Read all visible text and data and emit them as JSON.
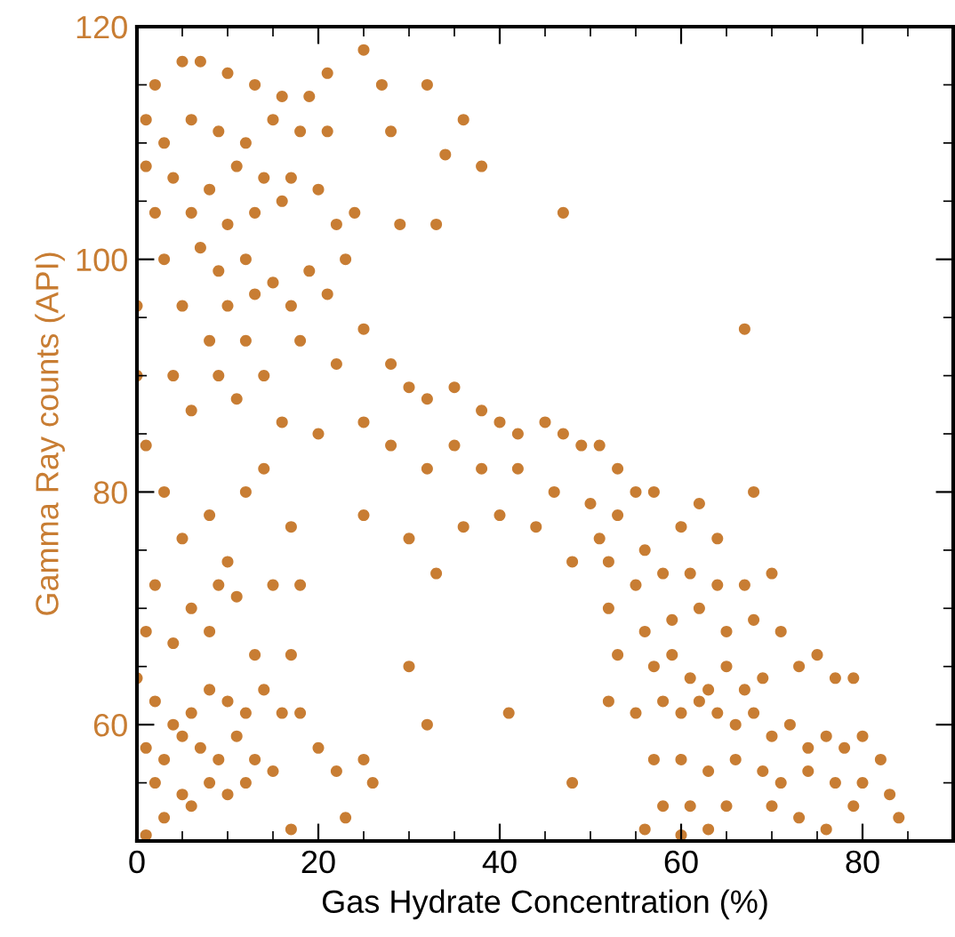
{
  "chart_data": {
    "type": "scatter",
    "xlabel": "Gas Hydrate Concentration (%)",
    "ylabel": "Gamma Ray counts (API)",
    "xlim": [
      0,
      90
    ],
    "xticks": [
      0,
      20,
      40,
      60,
      80
    ],
    "ylim": [
      50,
      120
    ],
    "yticks": [
      60,
      80,
      100,
      120
    ],
    "grid": false,
    "marker": "circle",
    "series": [
      {
        "color": "#c87d33",
        "x": [
          2,
          5,
          7,
          10,
          13,
          16,
          21,
          25,
          19,
          3,
          6,
          9,
          12,
          15,
          18,
          21,
          1,
          4,
          8,
          11,
          14,
          17,
          20,
          24,
          2,
          6,
          10,
          13,
          16,
          22,
          3,
          7,
          9,
          12,
          15,
          19,
          23,
          5,
          10,
          13,
          17,
          21,
          8,
          12,
          18,
          22,
          4,
          9,
          14,
          6,
          11,
          16,
          20,
          0,
          0,
          1,
          27,
          28,
          32,
          36,
          38,
          34,
          33,
          29,
          47,
          67,
          25,
          28,
          30,
          32,
          35,
          38,
          40,
          42,
          45,
          47,
          49,
          51,
          53,
          55,
          25,
          28,
          32,
          35,
          38,
          42,
          46,
          50,
          44,
          48,
          52,
          56,
          30,
          36,
          40,
          25,
          33,
          1,
          3,
          5,
          8,
          10,
          12,
          14,
          17,
          2,
          6,
          9,
          11,
          15,
          18,
          1,
          4,
          8,
          13,
          17,
          0,
          2,
          4,
          6,
          8,
          10,
          12,
          14,
          16,
          18,
          1,
          3,
          5,
          7,
          9,
          11,
          13,
          15,
          2,
          5,
          8,
          10,
          12,
          3,
          6,
          17,
          20,
          22,
          23,
          25,
          26,
          30,
          32,
          41,
          48,
          1,
          51,
          53,
          57,
          60,
          62,
          64,
          68,
          55,
          58,
          61,
          64,
          67,
          70,
          52,
          56,
          59,
          62,
          65,
          68,
          71,
          53,
          57,
          59,
          61,
          63,
          65,
          67,
          69,
          73,
          75,
          77,
          79,
          52,
          55,
          58,
          60,
          62,
          64,
          66,
          68,
          70,
          72,
          74,
          76,
          78,
          80,
          82,
          57,
          60,
          63,
          66,
          69,
          71,
          74,
          77,
          80,
          83,
          58,
          61,
          65,
          70,
          73,
          76,
          79,
          84,
          60,
          63,
          56
        ],
        "values": [
          115,
          117,
          117,
          116,
          115,
          114,
          116,
          118,
          114,
          110,
          112,
          111,
          110,
          112,
          111,
          111,
          108,
          107,
          106,
          108,
          107,
          107,
          106,
          104,
          104,
          104,
          103,
          104,
          105,
          103,
          100,
          101,
          99,
          100,
          98,
          99,
          100,
          96,
          96,
          97,
          96,
          97,
          93,
          93,
          93,
          91,
          90,
          90,
          90,
          87,
          88,
          86,
          85,
          96,
          90,
          112,
          115,
          111,
          115,
          112,
          108,
          109,
          103,
          103,
          104,
          94,
          94,
          91,
          89,
          88,
          89,
          87,
          86,
          85,
          86,
          85,
          84,
          84,
          82,
          80,
          86,
          84,
          82,
          84,
          82,
          82,
          80,
          79,
          77,
          74,
          74,
          75,
          76,
          77,
          78,
          78,
          73,
          84,
          80,
          76,
          78,
          74,
          80,
          82,
          77,
          72,
          70,
          72,
          71,
          72,
          72,
          68,
          67,
          68,
          66,
          66,
          64,
          62,
          60,
          61,
          63,
          62,
          61,
          63,
          61,
          61,
          58,
          57,
          59,
          58,
          57,
          59,
          57,
          56,
          55,
          54,
          55,
          54,
          55,
          52,
          53,
          51,
          58,
          56,
          52,
          57,
          55,
          65,
          60,
          61,
          55,
          50.5,
          76,
          78,
          80,
          77,
          79,
          76,
          80,
          72,
          73,
          73,
          72,
          72,
          73,
          70,
          68,
          69,
          70,
          68,
          69,
          68,
          66,
          65,
          66,
          64,
          63,
          65,
          63,
          64,
          65,
          66,
          64,
          64,
          62,
          61,
          62,
          61,
          62,
          61,
          60,
          61,
          59,
          60,
          58,
          59,
          58,
          59,
          57,
          57,
          57,
          56,
          57,
          56,
          55,
          56,
          55,
          55,
          54,
          53,
          53,
          53,
          53,
          52,
          51,
          53,
          52,
          50.5,
          51,
          51
        ]
      }
    ]
  }
}
